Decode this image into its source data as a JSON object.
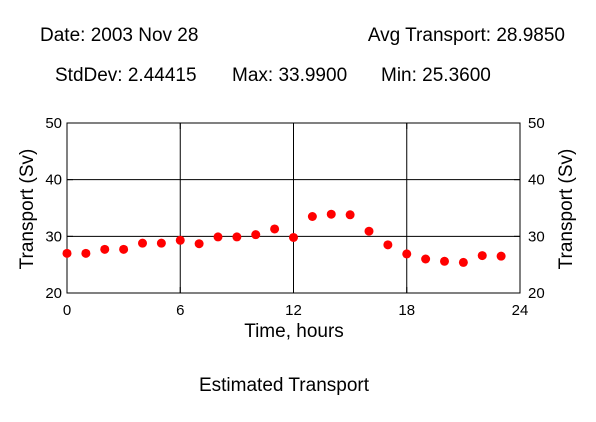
{
  "header": {
    "date": "Date: 2003 Nov 28",
    "avg": "Avg Transport: 28.9850",
    "stddev": "StdDev: 2.44415",
    "max": "Max: 33.9900",
    "min": "Min: 25.3600"
  },
  "caption": "Estimated Transport",
  "colors": {
    "points": "#ff0000",
    "axes": "#000000",
    "grid": "#000000",
    "background": "#ffffff"
  },
  "chart_data": {
    "type": "scatter",
    "title": "",
    "xlabel": "Time, hours",
    "ylabel": "Transport (Sv)",
    "ylabel_right": "Transport (Sv)",
    "xlim": [
      0,
      24
    ],
    "ylim": [
      20,
      50
    ],
    "xticks": [
      0,
      6,
      12,
      18,
      24
    ],
    "yticks": [
      20,
      30,
      40,
      50
    ],
    "grid": true,
    "series": [
      {
        "x": [
          0,
          1,
          2,
          3,
          4,
          5,
          6,
          7,
          8,
          9,
          10,
          11,
          12,
          13,
          14,
          15,
          16,
          17,
          18,
          19,
          20,
          21,
          22,
          23
        ],
        "y": [
          27.0,
          27.0,
          27.7,
          27.7,
          28.8,
          28.8,
          29.3,
          28.7,
          29.9,
          29.9,
          30.3,
          31.3,
          29.8,
          33.5,
          33.9,
          33.8,
          30.9,
          28.5,
          26.9,
          26.0,
          25.6,
          25.4,
          26.6,
          26.5
        ]
      }
    ]
  }
}
